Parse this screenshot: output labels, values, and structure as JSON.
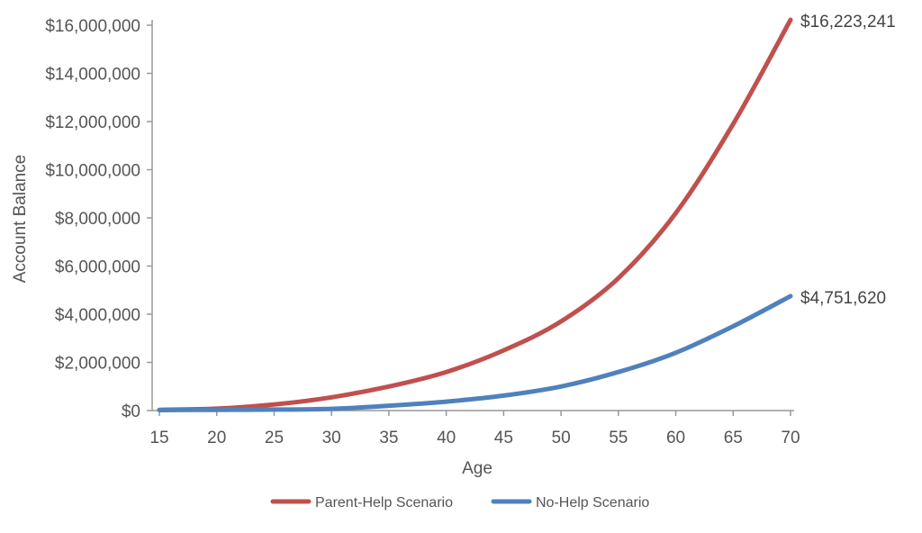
{
  "chart_data": {
    "type": "line",
    "title": "",
    "xlabel": "Age",
    "ylabel": "Account Balance",
    "xlim": [
      15,
      70
    ],
    "ylim": [
      0,
      16000000
    ],
    "x_ticks": [
      "15",
      "20",
      "25",
      "30",
      "35",
      "40",
      "45",
      "50",
      "55",
      "60",
      "65",
      "70"
    ],
    "y_ticks": [
      "$0",
      "$2,000,000",
      "$4,000,000",
      "$6,000,000",
      "$8,000,000",
      "$10,000,000",
      "$12,000,000",
      "$14,000,000",
      "$16,000,000"
    ],
    "grid": false,
    "legend_position": "bottom",
    "x": [
      15,
      20,
      25,
      30,
      35,
      40,
      45,
      50,
      55,
      60,
      65,
      70
    ],
    "series": [
      {
        "name": "Parent-Help Scenario",
        "color": "#c0504d",
        "values": [
          30000,
          80000,
          250000,
          550000,
          1000000,
          1600000,
          2500000,
          3700000,
          5500000,
          8200000,
          11900000,
          16223241
        ],
        "end_label": "$16,223,241"
      },
      {
        "name": "No-Help Scenario",
        "color": "#4f81bd",
        "values": [
          20000,
          30000,
          40000,
          70000,
          200000,
          370000,
          620000,
          1000000,
          1600000,
          2400000,
          3500000,
          4751620
        ],
        "end_label": "$4,751,620"
      }
    ]
  }
}
